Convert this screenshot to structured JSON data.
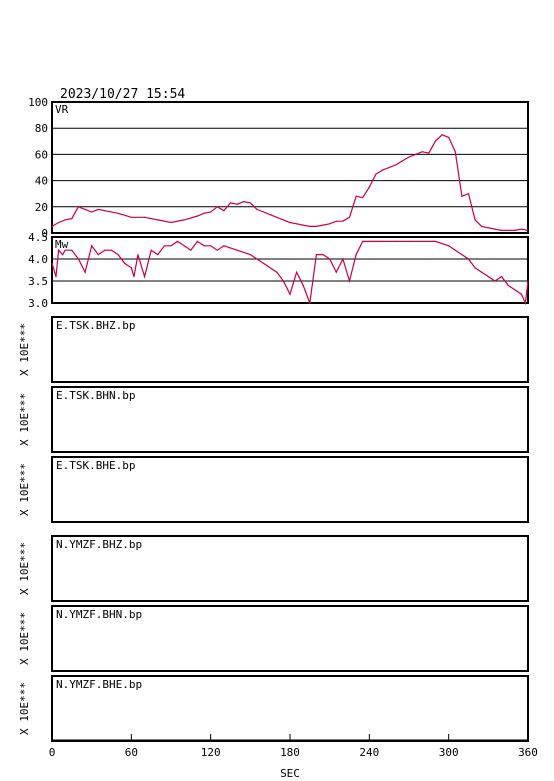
{
  "timestamp": "2023/10/27  15:54",
  "colors": {
    "trace": "#cc0044",
    "frame": "#000000",
    "grid": "#000000"
  },
  "chart_data": [
    {
      "type": "line",
      "label": "VR",
      "ylim": [
        0,
        100
      ],
      "yticks": [
        "100",
        "80",
        "60",
        "40",
        "20",
        "0"
      ],
      "x": [
        0,
        5,
        10,
        15,
        20,
        25,
        30,
        35,
        40,
        50,
        60,
        70,
        80,
        90,
        100,
        110,
        115,
        120,
        125,
        130,
        135,
        140,
        145,
        150,
        155,
        160,
        165,
        170,
        175,
        180,
        185,
        190,
        195,
        200,
        205,
        210,
        215,
        220,
        225,
        230,
        235,
        240,
        245,
        250,
        255,
        260,
        265,
        270,
        275,
        280,
        285,
        290,
        295,
        300,
        305,
        310,
        315,
        320,
        325,
        330,
        335,
        340,
        345,
        350,
        355,
        360
      ],
      "y": [
        5,
        8,
        10,
        11,
        20,
        18,
        16,
        18,
        17,
        15,
        12,
        12,
        10,
        8,
        10,
        13,
        15,
        16,
        20,
        17,
        23,
        22,
        24,
        23,
        18,
        16,
        14,
        12,
        10,
        8,
        7,
        6,
        5,
        5,
        6,
        7,
        9,
        9,
        12,
        28,
        27,
        35,
        45,
        48,
        50,
        52,
        55,
        58,
        60,
        62,
        61,
        70,
        75,
        73,
        62,
        28,
        30,
        10,
        5,
        4,
        3,
        2,
        2,
        2,
        3,
        2
      ]
    },
    {
      "type": "line",
      "label": "Mw",
      "ylim": [
        3.0,
        4.5
      ],
      "yticks": [
        "4.5",
        "4.0",
        "3.5",
        "3.0"
      ],
      "x": [
        0,
        3,
        5,
        8,
        10,
        15,
        20,
        25,
        30,
        35,
        40,
        45,
        50,
        55,
        60,
        62,
        65,
        70,
        75,
        80,
        85,
        90,
        95,
        100,
        105,
        110,
        115,
        120,
        125,
        130,
        140,
        150,
        160,
        170,
        175,
        180,
        185,
        190,
        195,
        200,
        205,
        210,
        215,
        220,
        225,
        230,
        235,
        240,
        250,
        260,
        270,
        280,
        290,
        300,
        305,
        310,
        315,
        320,
        325,
        330,
        335,
        340,
        345,
        350,
        355,
        358,
        360
      ],
      "y": [
        3.9,
        3.6,
        4.2,
        4.1,
        4.2,
        4.2,
        4.0,
        3.7,
        4.3,
        4.1,
        4.2,
        4.2,
        4.1,
        3.9,
        3.8,
        3.6,
        4.1,
        3.6,
        4.2,
        4.1,
        4.3,
        4.3,
        4.4,
        4.3,
        4.2,
        4.4,
        4.3,
        4.3,
        4.2,
        4.3,
        4.2,
        4.1,
        3.9,
        3.7,
        3.5,
        3.2,
        3.7,
        3.4,
        3.0,
        4.1,
        4.1,
        4.0,
        3.7,
        4.0,
        3.5,
        4.1,
        4.4,
        4.4,
        4.4,
        4.4,
        4.4,
        4.4,
        4.4,
        4.3,
        4.2,
        4.1,
        4.0,
        3.8,
        3.7,
        3.6,
        3.5,
        3.6,
        3.4,
        3.3,
        3.2,
        3.0,
        3.5
      ]
    }
  ],
  "waveform_panels": [
    {
      "name": "E.TSK.BHZ.bp",
      "scale": "X 10E***"
    },
    {
      "name": "E.TSK.BHN.bp",
      "scale": "X 10E***"
    },
    {
      "name": "E.TSK.BHE.bp",
      "scale": "X 10E***"
    },
    {
      "name": "N.YMZF.BHZ.bp",
      "scale": "X 10E***"
    },
    {
      "name": "N.YMZF.BHN.bp",
      "scale": "X 10E***"
    },
    {
      "name": "N.YMZF.BHE.bp",
      "scale": "X 10E***"
    }
  ],
  "xaxis": {
    "label": "SEC",
    "ticks": [
      "0",
      "60",
      "120",
      "180",
      "240",
      "300",
      "360"
    ],
    "range": [
      0,
      360
    ]
  }
}
